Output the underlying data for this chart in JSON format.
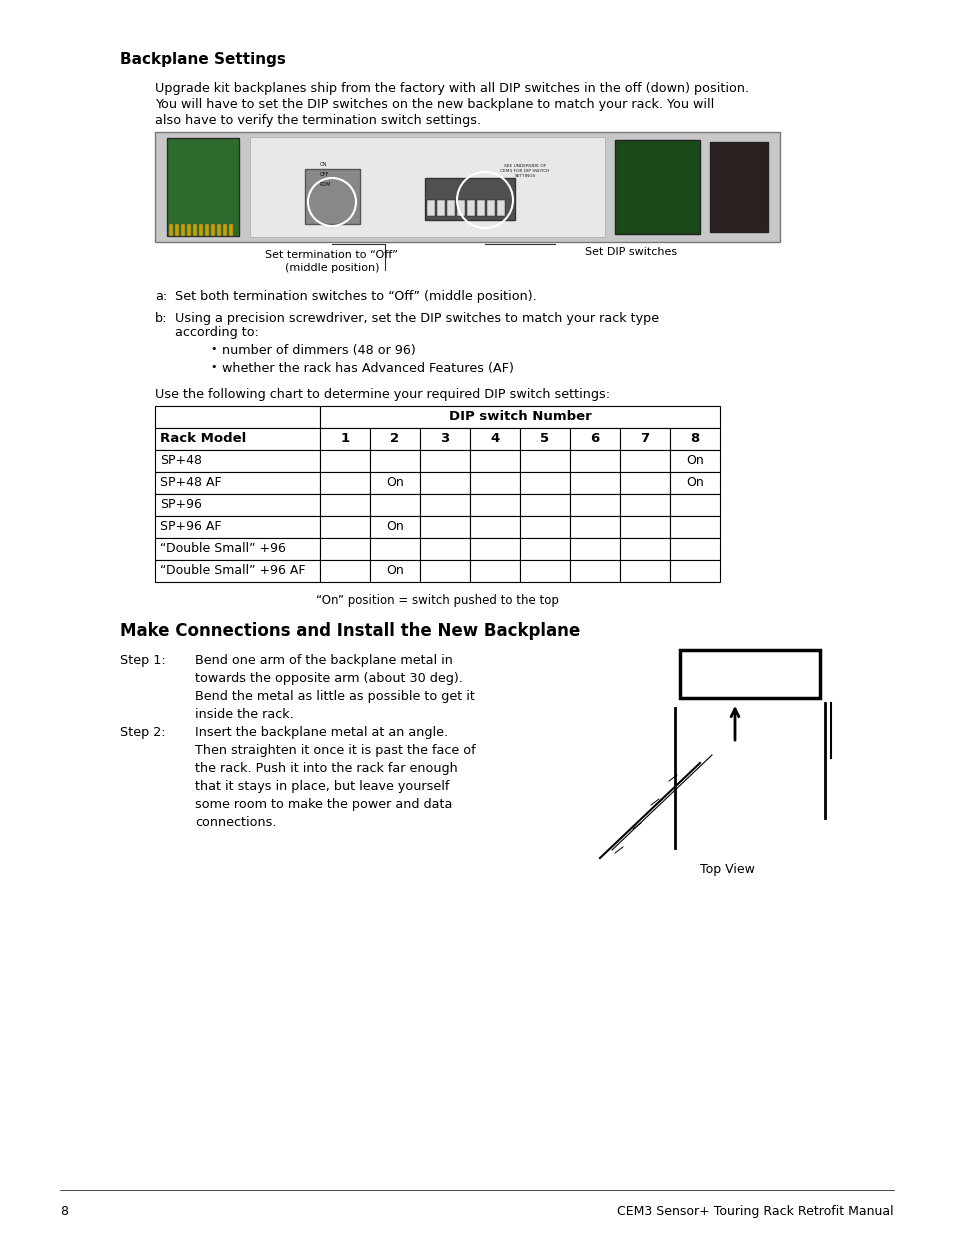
{
  "page_bg": "#ffffff",
  "section1_title": "Backplane Settings",
  "body1": "Upgrade kit backplanes ship from the factory with all DIP switches in the off (down) position.",
  "body2": "You will have to set the DIP switches on the new backplane to match your rack. You will",
  "body3": "also have to verify the termination switch settings.",
  "caption_left": "Set termination to “Off”\n(middle position)",
  "caption_right": "Set DIP switches",
  "item_a": "Set both termination switches to “Off” (middle position).",
  "item_b1": "Using a precision screwdriver, set the DIP switches to match your rack type",
  "item_b2": "according to:",
  "bullet1": "number of dimmers (48 or 96)",
  "bullet2": "whether the rack has Advanced Features (AF)",
  "chart_intro": "Use the following chart to determine your required DIP switch settings:",
  "table_header_span": "DIP switch Number",
  "table_col0": "Rack Model",
  "table_cols": [
    "1",
    "2",
    "3",
    "4",
    "5",
    "6",
    "7",
    "8"
  ],
  "table_rows": [
    [
      "SP+48",
      "",
      "",
      "",
      "",
      "",
      "",
      "",
      "On"
    ],
    [
      "SP+48 AF",
      "",
      "On",
      "",
      "",
      "",
      "",
      "",
      "On"
    ],
    [
      "SP+96",
      "",
      "",
      "",
      "",
      "",
      "",
      "",
      ""
    ],
    [
      "SP+96 AF",
      "",
      "On",
      "",
      "",
      "",
      "",
      "",
      ""
    ],
    [
      "“Double Small” +96",
      "",
      "",
      "",
      "",
      "",
      "",
      "",
      ""
    ],
    [
      "“Double Small” +96 AF",
      "",
      "On",
      "",
      "",
      "",
      "",
      "",
      ""
    ]
  ],
  "table_note": "“On” position = switch pushed to the top",
  "section2_title": "Make Connections and Install the New Backplane",
  "step1_label": "Step 1:",
  "step1_text": "Bend one arm of the backplane metal in\ntowards the opposite arm (about 30 deg).\nBend the metal as little as possible to get it\ninside the rack.",
  "step2_label": "Step 2:",
  "step2_text": "Insert the backplane metal at an angle.\nThen straighten it once it is past the face of\nthe rack. Push it into the rack far enough\nthat it stays in place, but leave yourself\nsome room to make the power and data\nconnections.",
  "topview_label": "Top View",
  "footer_page": "8",
  "footer_right": "CEM3 Sensor+ Touring Rack Retrofit Manual"
}
